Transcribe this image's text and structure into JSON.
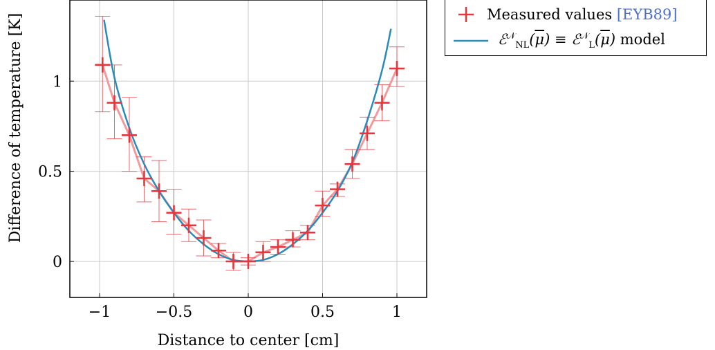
{
  "chart_data": {
    "type": "line",
    "xlabel": "Distance to center [cm]",
    "ylabel": "Difference of temperature [K]",
    "xlim": [
      -1.2,
      1.2
    ],
    "ylim": [
      -0.2,
      1.45
    ],
    "x_ticks": [
      -1,
      -0.5,
      0,
      0.5,
      1
    ],
    "x_tick_labels": [
      "−1",
      "−0.5",
      "0",
      "0.5",
      "1"
    ],
    "y_ticks": [
      0,
      0.5,
      1
    ],
    "y_tick_labels": [
      "0",
      "0.5",
      "1"
    ],
    "grid": true,
    "legend_position": "top-right, outside plot",
    "series": [
      {
        "name": "Measured values",
        "citation": "[EYB89]",
        "kind": "errorbar",
        "color": "#e8343a",
        "connector_color": "#f29a9c",
        "x": [
          -0.98,
          -0.9,
          -0.8,
          -0.7,
          -0.6,
          -0.5,
          -0.4,
          -0.3,
          -0.2,
          -0.1,
          0.0,
          0.1,
          0.2,
          0.3,
          0.4,
          0.5,
          0.6,
          0.7,
          0.8,
          0.9,
          1.0
        ],
        "y": [
          1.09,
          0.88,
          0.7,
          0.46,
          0.39,
          0.27,
          0.2,
          0.13,
          0.06,
          0.0,
          0.0,
          0.05,
          0.08,
          0.12,
          0.16,
          0.31,
          0.4,
          0.54,
          0.71,
          0.88,
          1.07
        ],
        "y_low": [
          0.83,
          0.68,
          0.5,
          0.33,
          0.22,
          0.15,
          0.11,
          0.03,
          0.02,
          -0.05,
          -0.02,
          0.0,
          0.04,
          0.08,
          0.12,
          0.25,
          0.36,
          0.46,
          0.62,
          0.78,
          0.97
        ],
        "y_high": [
          1.36,
          1.09,
          0.91,
          0.58,
          0.56,
          0.4,
          0.29,
          0.23,
          0.1,
          0.05,
          0.02,
          0.11,
          0.12,
          0.17,
          0.2,
          0.39,
          0.43,
          0.62,
          0.8,
          0.98,
          1.19
        ]
      },
      {
        "name": "model",
        "kind": "line",
        "color": "#2a8ab8",
        "x": [
          -0.97,
          -0.9,
          -0.8,
          -0.7,
          -0.6,
          -0.5,
          -0.4,
          -0.3,
          -0.2,
          -0.1,
          0.0,
          0.1,
          0.2,
          0.3,
          0.4,
          0.5,
          0.6,
          0.7,
          0.8,
          0.9,
          0.96
        ],
        "y": [
          1.34,
          1.02,
          0.74,
          0.54,
          0.39,
          0.27,
          0.17,
          0.095,
          0.04,
          0.008,
          0.0,
          0.008,
          0.04,
          0.095,
          0.17,
          0.27,
          0.39,
          0.55,
          0.78,
          1.06,
          1.29
        ]
      }
    ]
  },
  "legend": {
    "measured_label": "Measured values ",
    "measured_cite": "[EYB89]",
    "model_label_tail": " model"
  }
}
